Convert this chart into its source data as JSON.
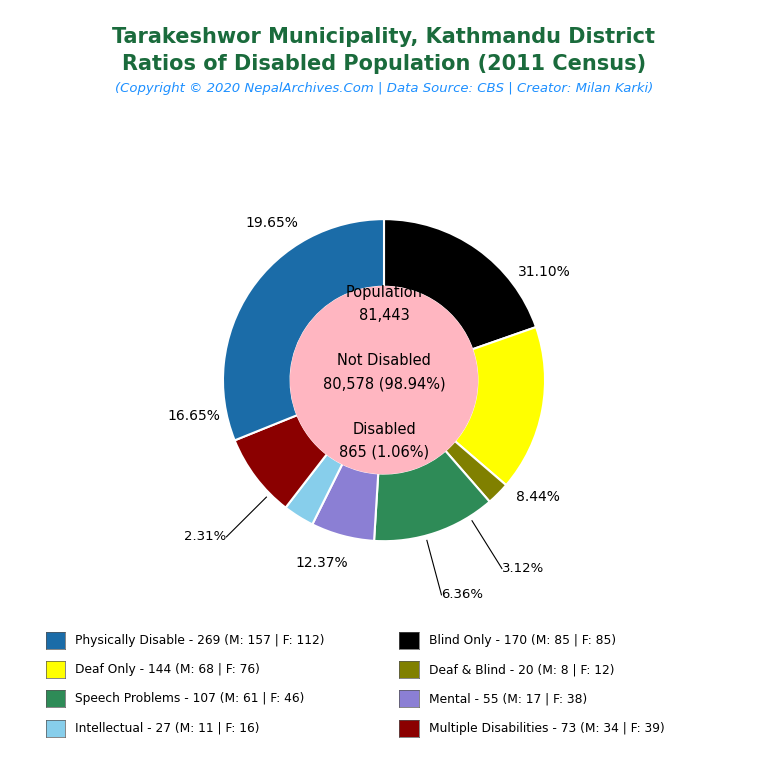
{
  "title_line1": "Tarakeshwor Municipality, Kathmandu District",
  "title_line2": "Ratios of Disabled Population (2011 Census)",
  "subtitle": "(Copyright © 2020 NepalArchives.Com | Data Source: CBS | Creator: Milan Karki)",
  "title_color": "#1a6b3c",
  "subtitle_color": "#1E90FF",
  "center_bg": "#FFB6C1",
  "categories_ordered_cw": [
    "Physically Disable",
    "Multiple Disabilities",
    "Intellectual",
    "Mental",
    "Speech Problems",
    "Deaf & Blind",
    "Deaf Only",
    "Blind Only"
  ],
  "values_cw": [
    269,
    73,
    27,
    55,
    107,
    20,
    144,
    170
  ],
  "colors_cw": [
    "#1B6CA8",
    "#8B0000",
    "#87CEEB",
    "#8B7FD4",
    "#2E8B57",
    "#808000",
    "#FFFF00",
    "#000000"
  ],
  "pct_labels_cw": [
    "31.10%",
    "8.44%",
    "3.12%",
    "6.36%",
    "12.37%",
    "2.31%",
    "16.65%",
    "19.65%"
  ],
  "legend_left": [
    [
      "Physically Disable - 269 (M: 157 | F: 112)",
      "#1B6CA8"
    ],
    [
      "Deaf Only - 144 (M: 68 | F: 76)",
      "#FFFF00"
    ],
    [
      "Speech Problems - 107 (M: 61 | F: 46)",
      "#2E8B57"
    ],
    [
      "Intellectual - 27 (M: 11 | F: 16)",
      "#87CEEB"
    ]
  ],
  "legend_right": [
    [
      "Blind Only - 170 (M: 85 | F: 85)",
      "#000000"
    ],
    [
      "Deaf & Blind - 20 (M: 8 | F: 12)",
      "#808000"
    ],
    [
      "Mental - 55 (M: 17 | F: 38)",
      "#8B7FD4"
    ],
    [
      "Multiple Disabilities - 73 (M: 34 | F: 39)",
      "#8B0000"
    ]
  ],
  "background_color": "#FFFFFF"
}
